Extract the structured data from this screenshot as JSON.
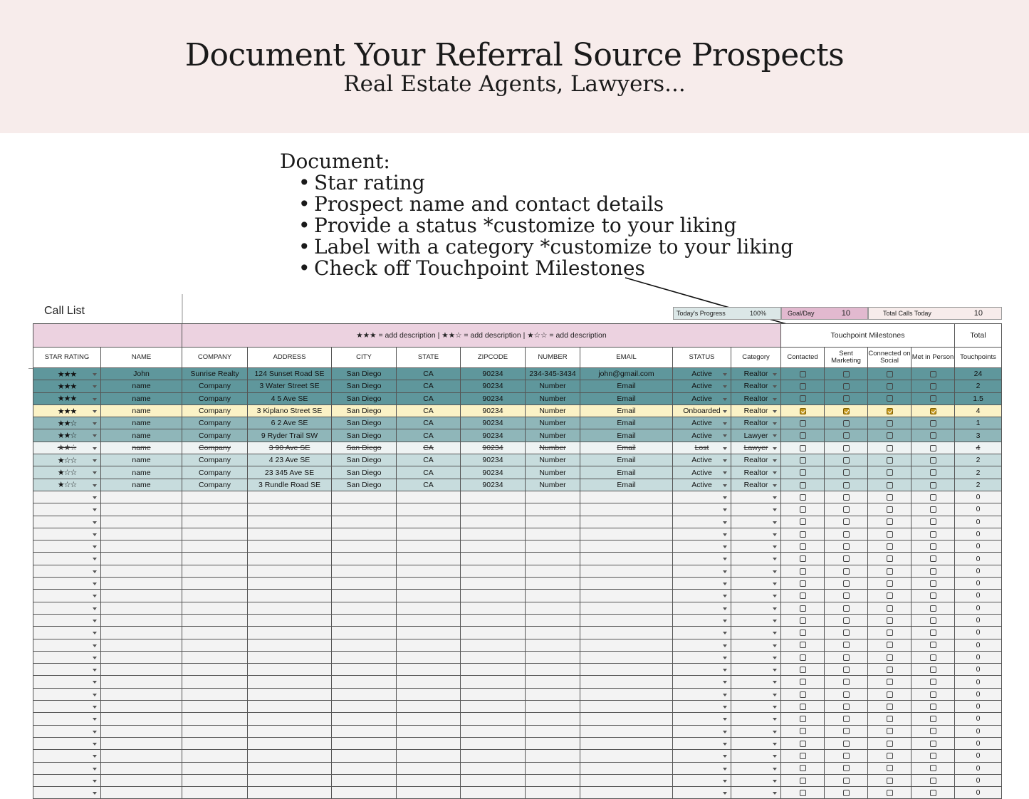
{
  "banner": {
    "title": "Document Your Referral Source Prospects",
    "subtitle": "Real Estate Agents, Lawyers..."
  },
  "notes": {
    "heading": "Document:",
    "bullets": [
      "Star rating",
      "Prospect name and contact details",
      "Provide a status *customize to your liking",
      "Label with a category *customize to your liking",
      "Check off Touchpoint Milestones"
    ]
  },
  "sheet": {
    "title": "Call List",
    "stats": {
      "progress_label": "Today's Progress",
      "progress_value": "100%",
      "goal_label": "Goal/Day",
      "goal_value": "10",
      "calls_label": "Total Calls Today",
      "calls_value": "10"
    },
    "legend": "★★★ = add description | ★★☆ = add description | ★☆☆ = add description",
    "milestones_label": "Touchpoint Milestones",
    "total_label": "Total",
    "columns": [
      "STAR RATING",
      "NAME",
      "COMPANY",
      "ADDRESS",
      "CITY",
      "STATE",
      "ZIPCODE",
      "NUMBER",
      "EMAIL",
      "STATUS",
      "Category",
      "Contacted",
      "Sent Marketing",
      "Connected on Social",
      "Met in Person",
      "Touchpoints"
    ],
    "rows": [
      {
        "stars": "★★★",
        "name": "John",
        "company": "Sunrise Realty",
        "address": "124 Sunset Road SE",
        "city": "San Diego",
        "state": "CA",
        "zip": "90234",
        "number": "234-345-3434",
        "email": "john@gmail.com",
        "status": "Active",
        "category": "Realtor",
        "checks": [
          false,
          false,
          false,
          false
        ],
        "total": "24",
        "style": "r3"
      },
      {
        "stars": "★★★",
        "name": "name",
        "company": "Company",
        "address": "3 Water Street SE",
        "city": "San Diego",
        "state": "CA",
        "zip": "90234",
        "number": "Number",
        "email": "Email",
        "status": "Active",
        "category": "Realtor",
        "checks": [
          false,
          false,
          false,
          false
        ],
        "total": "2",
        "style": "r3"
      },
      {
        "stars": "★★★",
        "name": "name",
        "company": "Company",
        "address": "4 5 Ave SE",
        "city": "San Diego",
        "state": "CA",
        "zip": "90234",
        "number": "Number",
        "email": "Email",
        "status": "Active",
        "category": "Realtor",
        "checks": [
          false,
          false,
          false,
          false
        ],
        "total": "1.5",
        "style": "r3"
      },
      {
        "stars": "★★★",
        "name": "name",
        "company": "Company",
        "address": "3 Kiplano Street SE",
        "city": "San Diego",
        "state": "CA",
        "zip": "90234",
        "number": "Number",
        "email": "Email",
        "status": "Onboarded",
        "category": "Realtor",
        "checks": [
          true,
          true,
          true,
          true
        ],
        "total": "4",
        "style": "ry"
      },
      {
        "stars": "★★☆",
        "name": "name",
        "company": "Company",
        "address": "6 2 Ave SE",
        "city": "San Diego",
        "state": "CA",
        "zip": "90234",
        "number": "Number",
        "email": "Email",
        "status": "Active",
        "category": "Realtor",
        "checks": [
          false,
          false,
          false,
          false
        ],
        "total": "1",
        "style": "r2"
      },
      {
        "stars": "★★☆",
        "name": "name",
        "company": "Company",
        "address": "9 Ryder Trail SW",
        "city": "San Diego",
        "state": "CA",
        "zip": "90234",
        "number": "Number",
        "email": "Email",
        "status": "Active",
        "category": "Lawyer",
        "checks": [
          false,
          false,
          false,
          false
        ],
        "total": "3",
        "style": "r2"
      },
      {
        "stars": "★★☆",
        "name": "name",
        "company": "Company",
        "address": "3 90 Ave SE",
        "city": "San Diego",
        "state": "CA",
        "zip": "90234",
        "number": "Number",
        "email": "Email",
        "status": "Lost",
        "category": "Lawyer",
        "checks": [
          false,
          false,
          false,
          false
        ],
        "total": "4",
        "style": "rs"
      },
      {
        "stars": "★☆☆",
        "name": "name",
        "company": "Company",
        "address": "4 23 Ave SE",
        "city": "San Diego",
        "state": "CA",
        "zip": "90234",
        "number": "Number",
        "email": "Email",
        "status": "Active",
        "category": "Realtor",
        "checks": [
          false,
          false,
          false,
          false
        ],
        "total": "2",
        "style": "r1"
      },
      {
        "stars": "★☆☆",
        "name": "name",
        "company": "Company",
        "address": "23 345 Ave SE",
        "city": "San Diego",
        "state": "CA",
        "zip": "90234",
        "number": "Number",
        "email": "Email",
        "status": "Active",
        "category": "Realtor",
        "checks": [
          false,
          false,
          false,
          false
        ],
        "total": "2",
        "style": "r1"
      },
      {
        "stars": "★☆☆",
        "name": "name",
        "company": "Company",
        "address": "3 Rundle Road SE",
        "city": "San Diego",
        "state": "CA",
        "zip": "90234",
        "number": "Number",
        "email": "Email",
        "status": "Active",
        "category": "Realtor",
        "checks": [
          false,
          false,
          false,
          false
        ],
        "total": "2",
        "style": "r1"
      }
    ],
    "empty_total": "0",
    "colors": {
      "banner_bg": "#f7eceb",
      "header_pink": "#ecd2e0",
      "row_dark_teal": "#5f979c",
      "row_mid_teal": "#8fb6b9",
      "row_light_teal": "#c7dcdd",
      "row_yellow": "#fbf2c6",
      "checkbox_gold": "#c79a1e"
    }
  }
}
